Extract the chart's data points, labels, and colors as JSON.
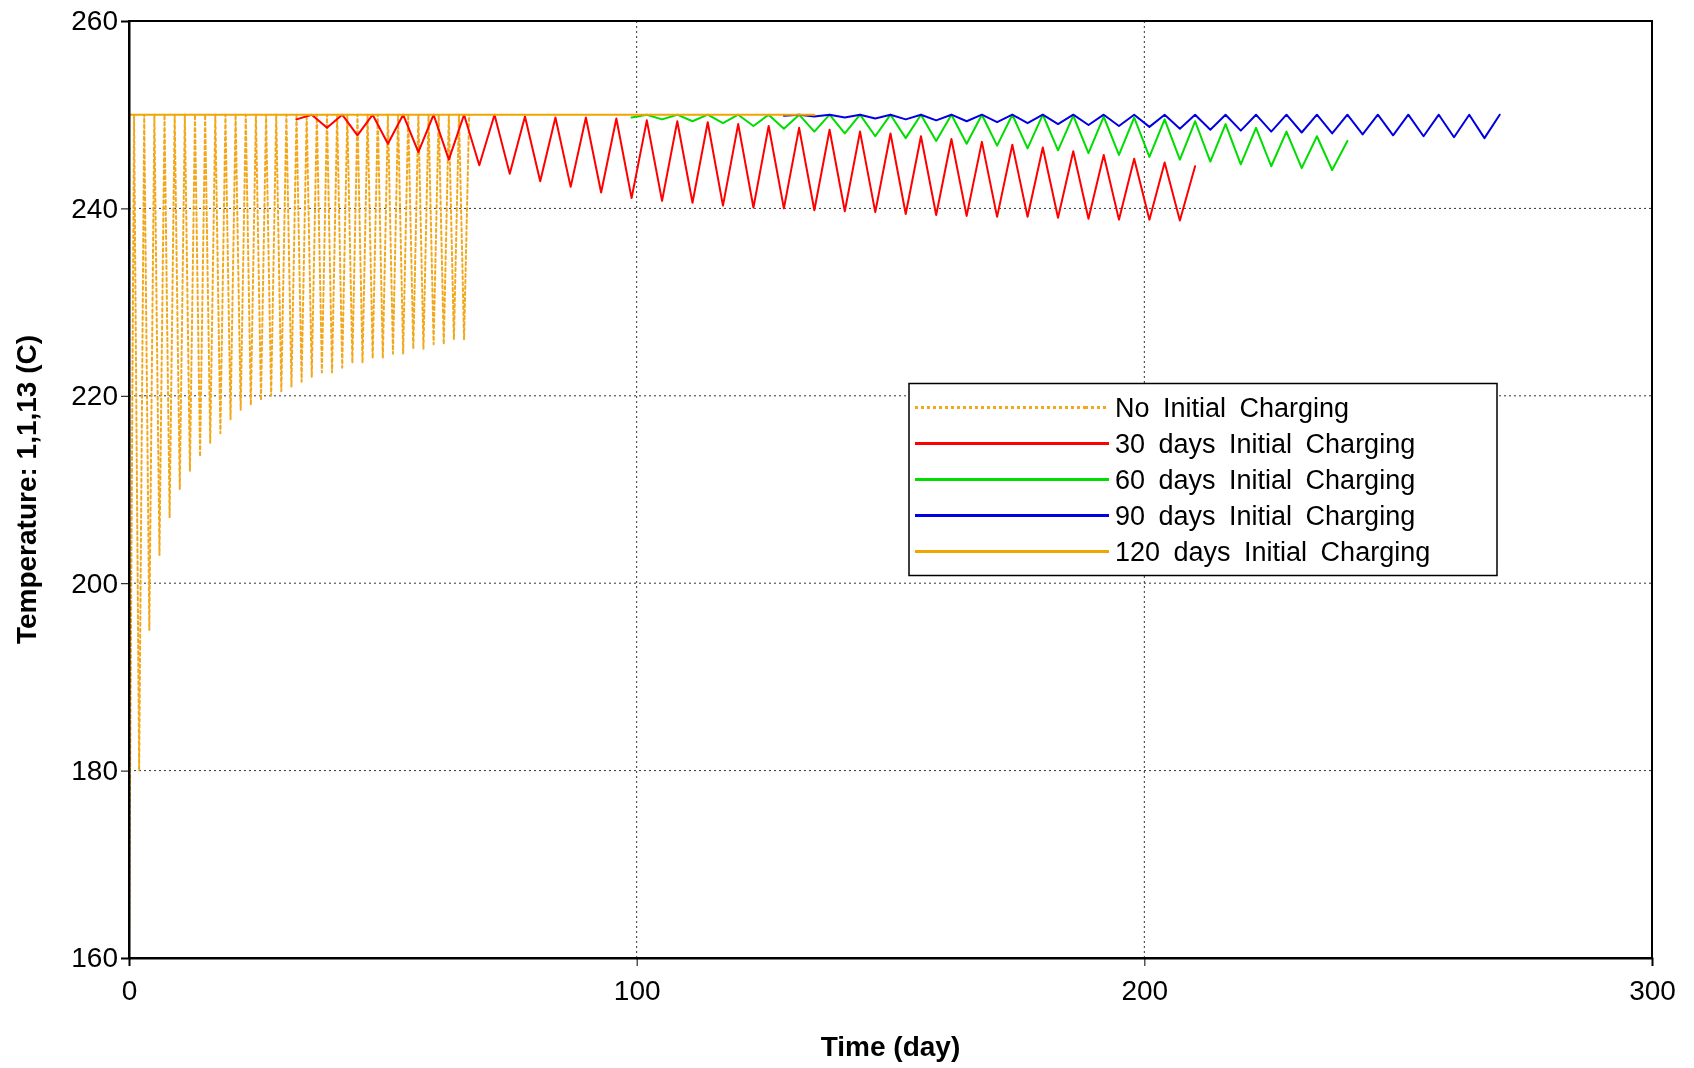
{
  "chart_data": {
    "type": "line",
    "xlabel": "Time (day)",
    "ylabel": "Temperature: 1,1,13 (C)",
    "xlim": [
      0,
      300
    ],
    "xticks": [
      0,
      100,
      200,
      300
    ],
    "ylim": [
      160,
      260
    ],
    "yticks": [
      160,
      180,
      200,
      220,
      240,
      260
    ],
    "grid": true,
    "legend": "right",
    "marker": "none",
    "series": [
      {
        "name": "No Initial Charging",
        "color": "#f2a81d",
        "line_style": "dotted",
        "x": [
          0,
          1,
          2,
          3,
          4,
          5,
          6,
          7,
          8,
          9,
          10,
          11,
          12,
          13,
          14,
          15,
          16,
          17,
          18,
          19,
          20,
          21,
          22,
          23,
          24,
          25,
          26,
          27,
          28,
          29,
          30,
          31,
          32,
          33,
          34,
          35,
          36,
          37,
          38,
          39,
          40,
          41,
          42,
          43,
          44,
          45,
          46,
          47,
          48,
          49,
          50,
          51,
          52,
          53,
          54,
          55,
          56,
          57,
          58,
          59,
          60,
          61,
          62,
          63,
          64,
          65,
          66,
          67
        ],
        "values": [
          160,
          250,
          180,
          250,
          195,
          250,
          203,
          250,
          207,
          250,
          210,
          250,
          212,
          250,
          213.5,
          250,
          215,
          250,
          216,
          250,
          217.5,
          250,
          218.5,
          250,
          219,
          250,
          219.5,
          250,
          220,
          250,
          220.5,
          250,
          221,
          250,
          221.5,
          250,
          222,
          250,
          222.5,
          250,
          222.5,
          250,
          223,
          250,
          223.5,
          250,
          223.5,
          250,
          224,
          250,
          224,
          250,
          224.5,
          250,
          224.5,
          250,
          225,
          250,
          225,
          250,
          225.5,
          250,
          225.5,
          250,
          226,
          250,
          226,
          250
        ]
      },
      {
        "name": "30 days Initial Charging",
        "color": "#ff0000",
        "line_style": "solid",
        "x": [
          33,
          36,
          39,
          42,
          45,
          48,
          51,
          54,
          57,
          60,
          63,
          66,
          69,
          72,
          75,
          78,
          81,
          84,
          87,
          90,
          93,
          96,
          99,
          102,
          105,
          108,
          111,
          114,
          117,
          120,
          123,
          126,
          129,
          132,
          135,
          138,
          141,
          144,
          147,
          150,
          153,
          156,
          159,
          162,
          165,
          168,
          171,
          174,
          177,
          180,
          183,
          186,
          189,
          192,
          195,
          198,
          201,
          204,
          207,
          210
        ],
        "values": [
          249.5,
          250,
          248.6,
          250,
          247.8,
          250,
          246.9,
          250,
          246,
          250,
          245.2,
          250,
          244.6,
          250,
          243.7,
          249.8,
          242.9,
          249.7,
          242.3,
          249.7,
          241.7,
          249.6,
          241.1,
          249.4,
          240.8,
          249.3,
          240.6,
          249.2,
          240.3,
          249,
          240.1,
          248.8,
          240,
          248.6,
          239.8,
          248.4,
          239.7,
          248.2,
          239.6,
          248,
          239.4,
          247.7,
          239.3,
          247.4,
          239.2,
          247.1,
          239.1,
          246.8,
          239.1,
          246.5,
          239,
          246.1,
          238.9,
          245.7,
          238.8,
          245.3,
          238.8,
          244.9,
          238.7,
          244.5
        ]
      },
      {
        "name": "60 days Initial Charging",
        "color": "#00dd00",
        "line_style": "solid",
        "x": [
          99,
          102,
          105,
          108,
          111,
          114,
          117,
          120,
          123,
          126,
          129,
          132,
          135,
          138,
          141,
          144,
          147,
          150,
          153,
          156,
          159,
          162,
          165,
          168,
          171,
          174,
          177,
          180,
          183,
          186,
          189,
          192,
          195,
          198,
          201,
          204,
          207,
          210,
          213,
          216,
          219,
          222,
          225,
          228,
          231,
          234,
          237,
          240
        ],
        "values": [
          249.7,
          250,
          249.5,
          250,
          249.3,
          250,
          249.1,
          250,
          248.8,
          250,
          248.5,
          250,
          248.2,
          250,
          248,
          250,
          247.7,
          250,
          247.5,
          250,
          247.2,
          250,
          246.9,
          250,
          246.7,
          250,
          246.4,
          250,
          246.2,
          249.9,
          245.9,
          249.8,
          245.7,
          249.7,
          245.5,
          249.5,
          245.2,
          249.3,
          245,
          249,
          244.7,
          248.6,
          244.5,
          248.2,
          244.3,
          247.7,
          244.1,
          247.2
        ]
      },
      {
        "name": "90 days Initial Charging",
        "color": "#0000e0",
        "line_style": "solid",
        "x": [
          129,
          132,
          135,
          138,
          141,
          144,
          147,
          150,
          153,
          156,
          159,
          162,
          165,
          168,
          171,
          174,
          177,
          180,
          183,
          186,
          189,
          192,
          195,
          198,
          201,
          204,
          207,
          210,
          213,
          216,
          219,
          222,
          225,
          228,
          231,
          234,
          237,
          240,
          243,
          246,
          249,
          252,
          255,
          258,
          261,
          264,
          267,
          270
        ],
        "values": [
          249.9,
          250,
          249.8,
          250,
          249.7,
          250,
          249.6,
          250,
          249.5,
          250,
          249.4,
          250,
          249.3,
          250,
          249.2,
          250,
          249.1,
          250,
          249,
          250,
          248.9,
          250,
          248.8,
          250,
          248.7,
          250,
          248.5,
          250,
          248.4,
          250,
          248.3,
          250,
          248.2,
          250,
          248.1,
          250,
          248,
          250,
          247.9,
          250,
          247.8,
          250,
          247.7,
          250,
          247.6,
          250,
          247.5,
          250
        ]
      },
      {
        "name": "120 days Initial Charging",
        "color": "#f0a500",
        "line_style": "solid",
        "x": [
          0,
          135
        ],
        "values": [
          250,
          250
        ]
      }
    ]
  }
}
